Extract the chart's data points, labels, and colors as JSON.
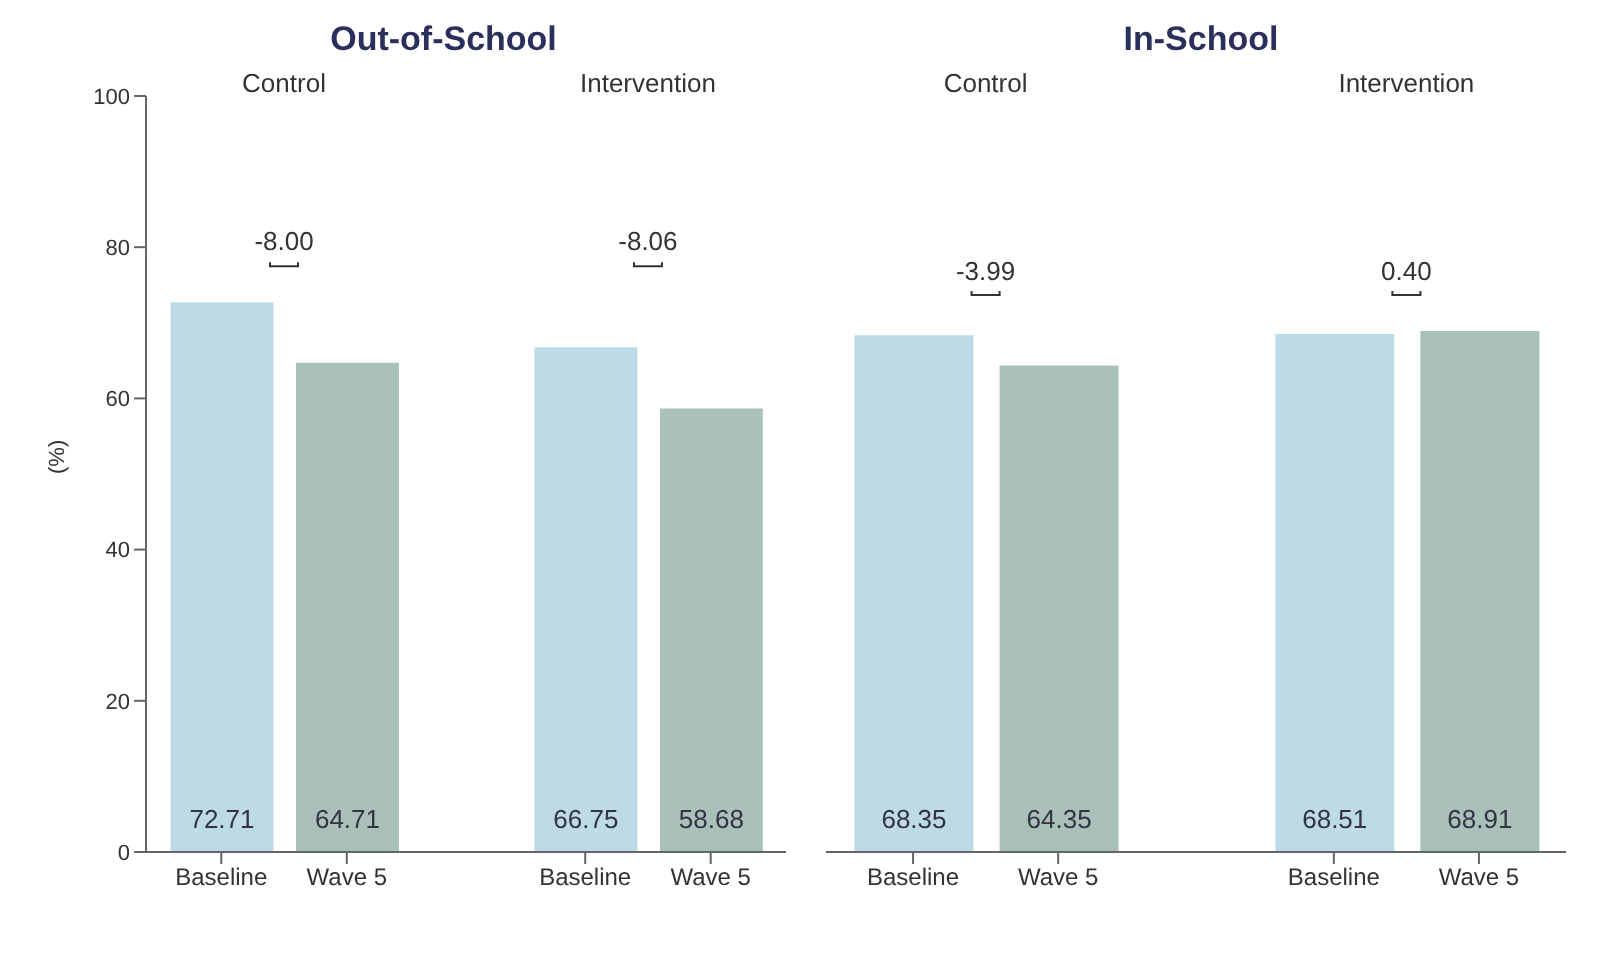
{
  "chart_data": [
    {
      "type": "bar",
      "title": "Out-of-School",
      "ylabel": "(%)",
      "categories": [
        "Baseline",
        "Wave 5",
        "Baseline",
        "Wave 5"
      ],
      "values": [
        72.71,
        64.71,
        66.75,
        58.68
      ],
      "colors": [
        "#bddbe6",
        "#a9c1b9",
        "#bddbe6",
        "#a9c1b9"
      ],
      "data_labels": true,
      "ylim": [
        0,
        100
      ],
      "yticks": [
        0,
        20,
        40,
        60,
        80,
        100
      ],
      "grid": false,
      "legend": false,
      "annotations": [
        "Control",
        "Intervention",
        "-8.00",
        "-8.06"
      ]
    },
    {
      "type": "bar",
      "title": "In-School",
      "categories": [
        "Baseline",
        "Wave 5",
        "Baseline",
        "Wave 5"
      ],
      "values": [
        68.35,
        64.35,
        68.51,
        68.91
      ],
      "colors": [
        "#bddbe6",
        "#a9c1b9",
        "#bddbe6",
        "#a9c1b9"
      ],
      "data_labels": true,
      "ylim": [
        0,
        100
      ],
      "yticks": [
        0,
        20,
        40,
        60,
        80,
        100
      ],
      "grid": false,
      "legend": false,
      "tick_labels": "x",
      "annotations": [
        "Control",
        "Intervention",
        "-3.99",
        "0.40"
      ]
    }
  ]
}
